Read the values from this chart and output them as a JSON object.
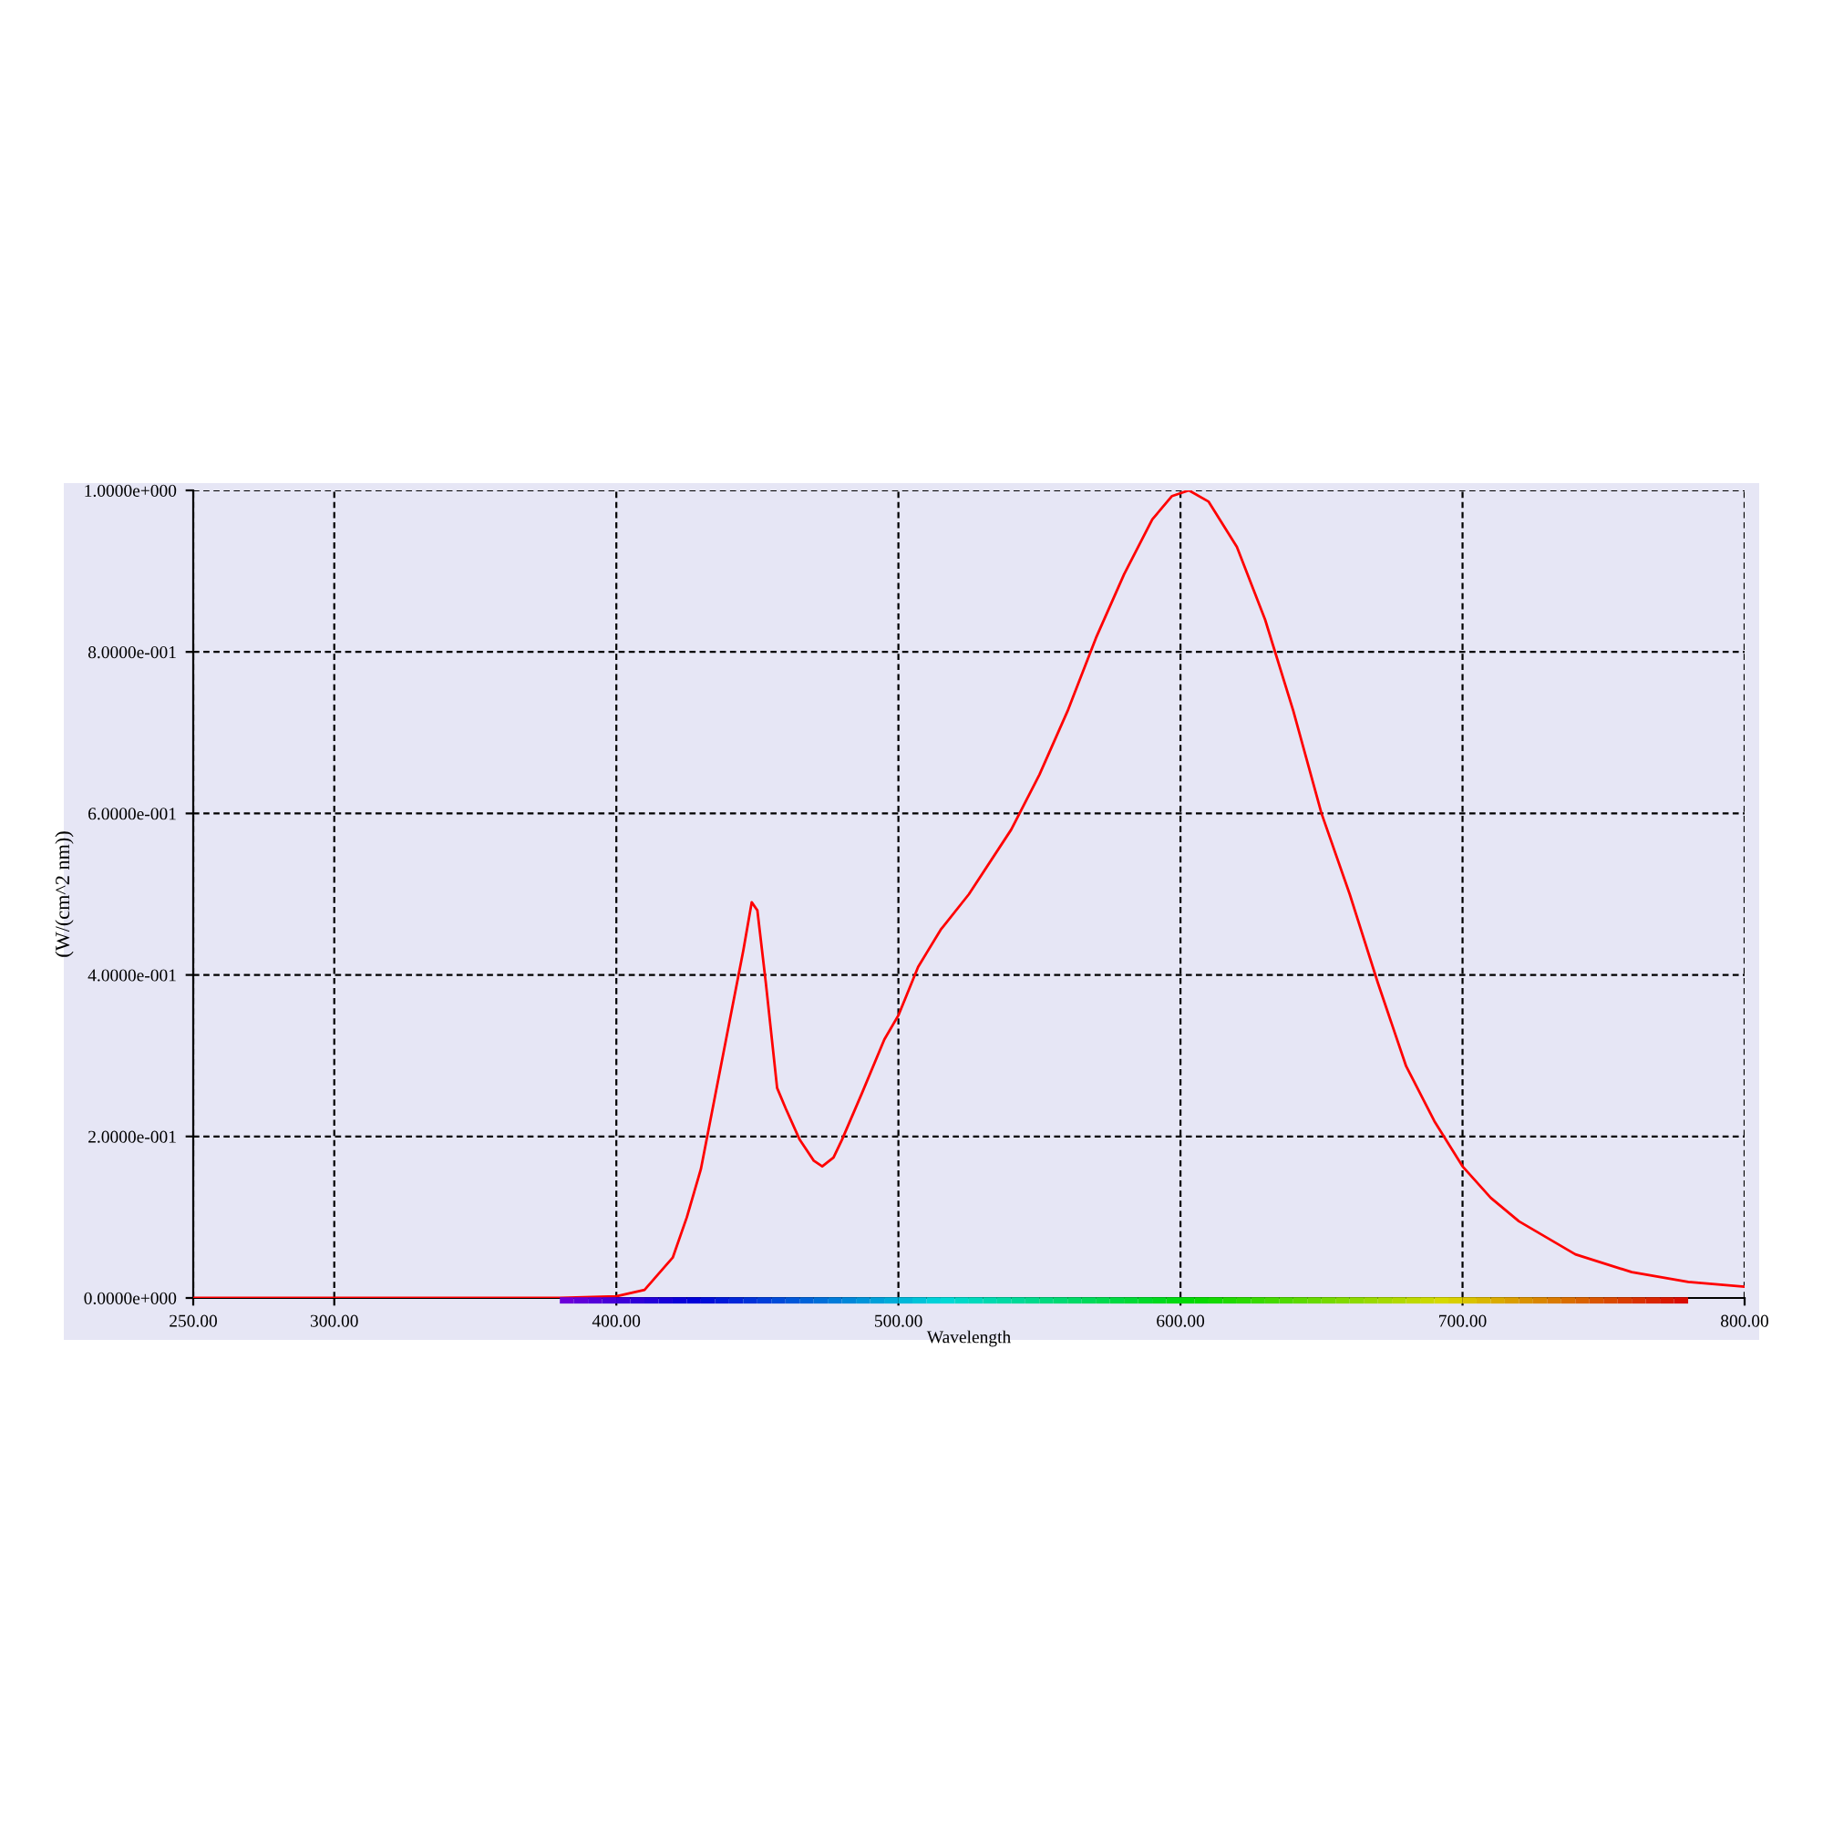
{
  "chart_data": {
    "type": "line",
    "xlabel": "Wavelength",
    "ylabel": "(W/(cm^2 nm))",
    "x": [
      250,
      300,
      350,
      380,
      400,
      410,
      420,
      425,
      430,
      435,
      440,
      445,
      448,
      450,
      453,
      457,
      460,
      465,
      470,
      473,
      477,
      480,
      487,
      495,
      500,
      507,
      515,
      525,
      540,
      550,
      560,
      570,
      580,
      590,
      597,
      603,
      610,
      620,
      630,
      640,
      650,
      660,
      670,
      680,
      690,
      700,
      710,
      720,
      740,
      760,
      780,
      800
    ],
    "series": [
      {
        "color": "#ff0000",
        "values": [
          0,
          0,
          0,
          0,
          0.002,
          0.01,
          0.05,
          0.1,
          0.16,
          0.25,
          0.34,
          0.43,
          0.49,
          0.48,
          0.39,
          0.26,
          0.235,
          0.196,
          0.17,
          0.163,
          0.174,
          0.196,
          0.253,
          0.32,
          0.35,
          0.41,
          0.456,
          0.5,
          0.58,
          0.648,
          0.727,
          0.817,
          0.896,
          0.964,
          0.993,
          1.0,
          0.986,
          0.93,
          0.84,
          0.727,
          0.6,
          0.5,
          0.39,
          0.287,
          0.219,
          0.163,
          0.124,
          0.095,
          0.054,
          0.032,
          0.02,
          0.014
        ]
      }
    ],
    "xlim": [
      250,
      800
    ],
    "ylim": [
      0,
      1
    ],
    "xticks": [
      {
        "value": 250,
        "label": "250.00"
      },
      {
        "value": 300,
        "label": "300.00"
      },
      {
        "value": 400,
        "label": "400.00"
      },
      {
        "value": 500,
        "label": "500.00"
      },
      {
        "value": 600,
        "label": "600.00"
      },
      {
        "value": 700,
        "label": "700.00"
      },
      {
        "value": 800,
        "label": "800.00"
      }
    ],
    "yticks": [
      {
        "value": 0,
        "label": "0.0000e+000"
      },
      {
        "value": 0.2,
        "label": "2.0000e-001"
      },
      {
        "value": 0.4,
        "label": "4.0000e-001"
      },
      {
        "value": 0.6,
        "label": "6.0000e-001"
      },
      {
        "value": 0.8,
        "label": "8.0000e-001"
      },
      {
        "value": 1,
        "label": "1.0000e+000"
      }
    ],
    "grid": true,
    "line_style": "solid",
    "marker": "none"
  }
}
